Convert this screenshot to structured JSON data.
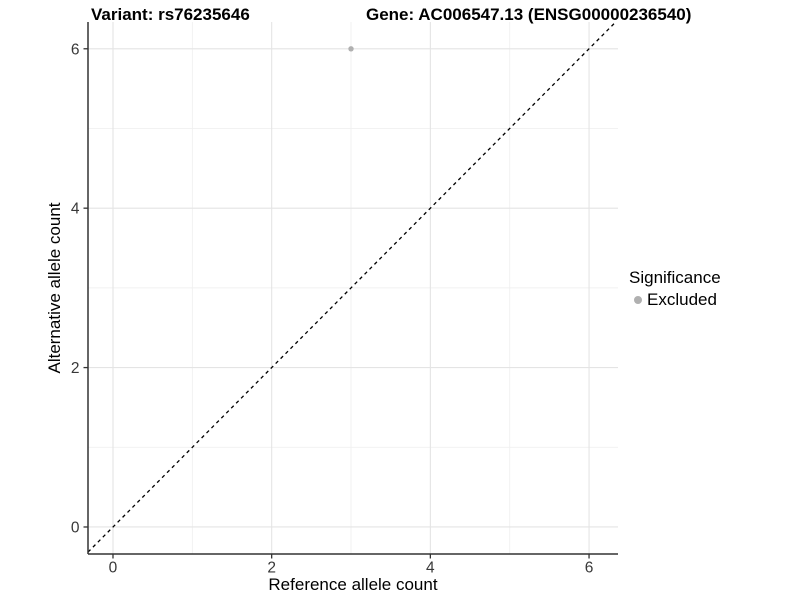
{
  "chart_data": {
    "type": "scatter",
    "title_left": "Variant: rs76235646",
    "title_right": "Gene: AC006547.13 (ENSG00000236540)",
    "xlabel": "Reference allele count",
    "ylabel": "Alternative allele count",
    "xlim": [
      -0.315,
      6.365
    ],
    "ylim": [
      -0.339,
      6.336
    ],
    "xticks": [
      0,
      2,
      4,
      6
    ],
    "yticks": [
      0,
      2,
      4,
      6
    ],
    "x_minor_ticks": [
      1,
      3,
      5
    ],
    "y_minor_ticks": [
      1,
      3,
      5
    ],
    "grid": true,
    "legend_position": "right",
    "series": [
      {
        "name": "Excluded",
        "color": "#b0b0b0",
        "points": [
          {
            "x": 3,
            "y": 6
          }
        ]
      }
    ],
    "reference_line": {
      "kind": "identity",
      "label": "y = x",
      "style": "dashed",
      "color": "#000000"
    },
    "legend": {
      "title": "Significance",
      "items": [
        {
          "label": "Excluded",
          "color": "#b0b0b0"
        }
      ]
    },
    "colors": {
      "background": "#ffffff",
      "grid_major": "#e4e4e4",
      "grid_minor": "#f0f0f0",
      "axis_line": "#333333",
      "tick_text": "#383838",
      "point": "#b0b0b0"
    }
  }
}
